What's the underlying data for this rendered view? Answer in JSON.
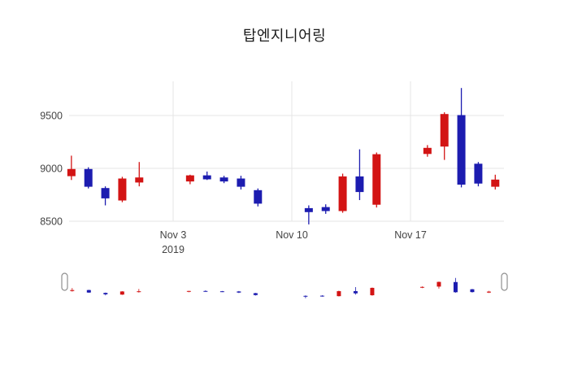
{
  "chart_data": {
    "type": "candlestick",
    "title": "탑엔지니어링",
    "up_color": "#d31414",
    "down_color": "#1c1cb0",
    "grid_color": "#e6e6e6",
    "tick_color": "#444444",
    "legend_position": "none",
    "grid": true,
    "has_rangeslider": true,
    "y_ticks": [
      {
        "value": 9500,
        "label": "9500"
      },
      {
        "value": 9000,
        "label": "9000"
      },
      {
        "value": 8500,
        "label": "8500"
      }
    ],
    "x_ticks": [
      {
        "date": "2019-11-03",
        "label": "Nov 3",
        "sublabel": "2019"
      },
      {
        "date": "2019-11-10",
        "label": "Nov 10",
        "sublabel": ""
      },
      {
        "date": "2019-11-17",
        "label": "Nov 17",
        "sublabel": ""
      }
    ],
    "y_range": [
      8400,
      9800
    ],
    "ohlc": [
      {
        "date": "2019-10-28",
        "open": 8930,
        "high": 9120,
        "low": 8890,
        "close": 8990
      },
      {
        "date": "2019-10-29",
        "open": 8990,
        "high": 9010,
        "low": 8810,
        "close": 8830
      },
      {
        "date": "2019-10-30",
        "open": 8810,
        "high": 8830,
        "low": 8650,
        "close": 8720
      },
      {
        "date": "2019-10-31",
        "open": 8700,
        "high": 8920,
        "low": 8680,
        "close": 8900
      },
      {
        "date": "2019-11-01",
        "open": 8870,
        "high": 9060,
        "low": 8830,
        "close": 8910
      },
      {
        "date": "2019-11-04",
        "open": 8880,
        "high": 8940,
        "low": 8850,
        "close": 8930
      },
      {
        "date": "2019-11-05",
        "open": 8930,
        "high": 8970,
        "low": 8890,
        "close": 8900
      },
      {
        "date": "2019-11-06",
        "open": 8910,
        "high": 8930,
        "low": 8860,
        "close": 8880
      },
      {
        "date": "2019-11-07",
        "open": 8900,
        "high": 8930,
        "low": 8800,
        "close": 8830
      },
      {
        "date": "2019-11-08",
        "open": 8790,
        "high": 8810,
        "low": 8640,
        "close": 8670
      },
      {
        "date": "2019-11-11",
        "open": 8620,
        "high": 8650,
        "low": 8470,
        "close": 8590
      },
      {
        "date": "2019-11-12",
        "open": 8630,
        "high": 8660,
        "low": 8570,
        "close": 8600
      },
      {
        "date": "2019-11-13",
        "open": 8600,
        "high": 8950,
        "low": 8580,
        "close": 8920
      },
      {
        "date": "2019-11-14",
        "open": 8920,
        "high": 9180,
        "low": 8700,
        "close": 8780
      },
      {
        "date": "2019-11-15",
        "open": 8660,
        "high": 9150,
        "low": 8630,
        "close": 9130
      },
      {
        "date": "2019-11-18",
        "open": 9140,
        "high": 9220,
        "low": 9110,
        "close": 9190
      },
      {
        "date": "2019-11-19",
        "open": 9210,
        "high": 9530,
        "low": 9080,
        "close": 9510
      },
      {
        "date": "2019-11-20",
        "open": 9500,
        "high": 9760,
        "low": 8820,
        "close": 8850
      },
      {
        "date": "2019-11-21",
        "open": 9040,
        "high": 9060,
        "low": 8830,
        "close": 8860
      },
      {
        "date": "2019-11-22",
        "open": 8830,
        "high": 8940,
        "low": 8800,
        "close": 8890
      }
    ]
  }
}
